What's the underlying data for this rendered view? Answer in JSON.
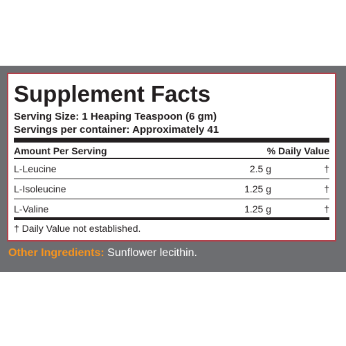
{
  "panel": {
    "title": "Supplement Facts",
    "serving_size": "Serving Size: 1 Heaping Teaspoon (6 gm)",
    "servings_per_container": "Servings per container: Approximately 41",
    "columns": [
      "Amount Per Serving",
      "% Daily Value"
    ],
    "rows": [
      [
        "L-Leucine",
        "2.5 g",
        "†"
      ],
      [
        "L-Isoleucine",
        "1.25 g",
        "†"
      ],
      [
        "L-Valine",
        "1.25 g",
        "†"
      ]
    ],
    "footnote": "† Daily Value not established."
  },
  "other_ingredients": {
    "label": "Other Ingredients:",
    "text": "Sunflower lecithin."
  }
}
